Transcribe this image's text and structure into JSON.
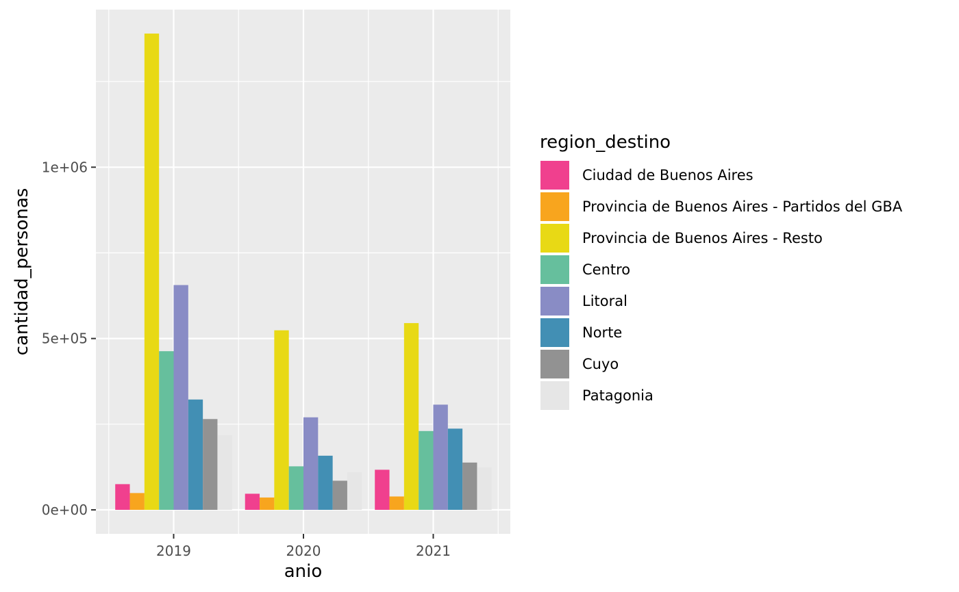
{
  "chart_data": {
    "type": "bar",
    "xlabel": "anio",
    "ylabel": "cantidad_personas",
    "categories": [
      "2019",
      "2020",
      "2021"
    ],
    "ylim": [
      -70000,
      1460000
    ],
    "y_ticks": [
      0,
      500000,
      1000000
    ],
    "y_tick_labels": [
      "0e+00",
      "5e+05",
      "1e+06"
    ],
    "grid": true,
    "legend": {
      "title": "region_destino",
      "position": "right"
    },
    "series": [
      {
        "name": "Ciudad de Buenos Aires",
        "color": "#F0408E",
        "values": [
          75000,
          47000,
          117000
        ]
      },
      {
        "name": "Provincia de Buenos Aires - Partidos del GBA",
        "color": "#F8A51E",
        "values": [
          49000,
          36000,
          39000
        ]
      },
      {
        "name": "Provincia de Buenos Aires - Resto",
        "color": "#E8D915",
        "values": [
          1390000,
          524000,
          545000
        ]
      },
      {
        "name": "Centro",
        "color": "#66BF9D",
        "values": [
          463000,
          127000,
          230000
        ]
      },
      {
        "name": "Litoral",
        "color": "#898CC5",
        "values": [
          656000,
          270000,
          307000
        ]
      },
      {
        "name": "Norte",
        "color": "#428FB4",
        "values": [
          322000,
          158000,
          237000
        ]
      },
      {
        "name": "Cuyo",
        "color": "#929292",
        "values": [
          265000,
          85000,
          138000
        ]
      },
      {
        "name": "Patagonia",
        "color": "#E6E6E6",
        "values": [
          218000,
          110000,
          124000
        ]
      }
    ]
  }
}
